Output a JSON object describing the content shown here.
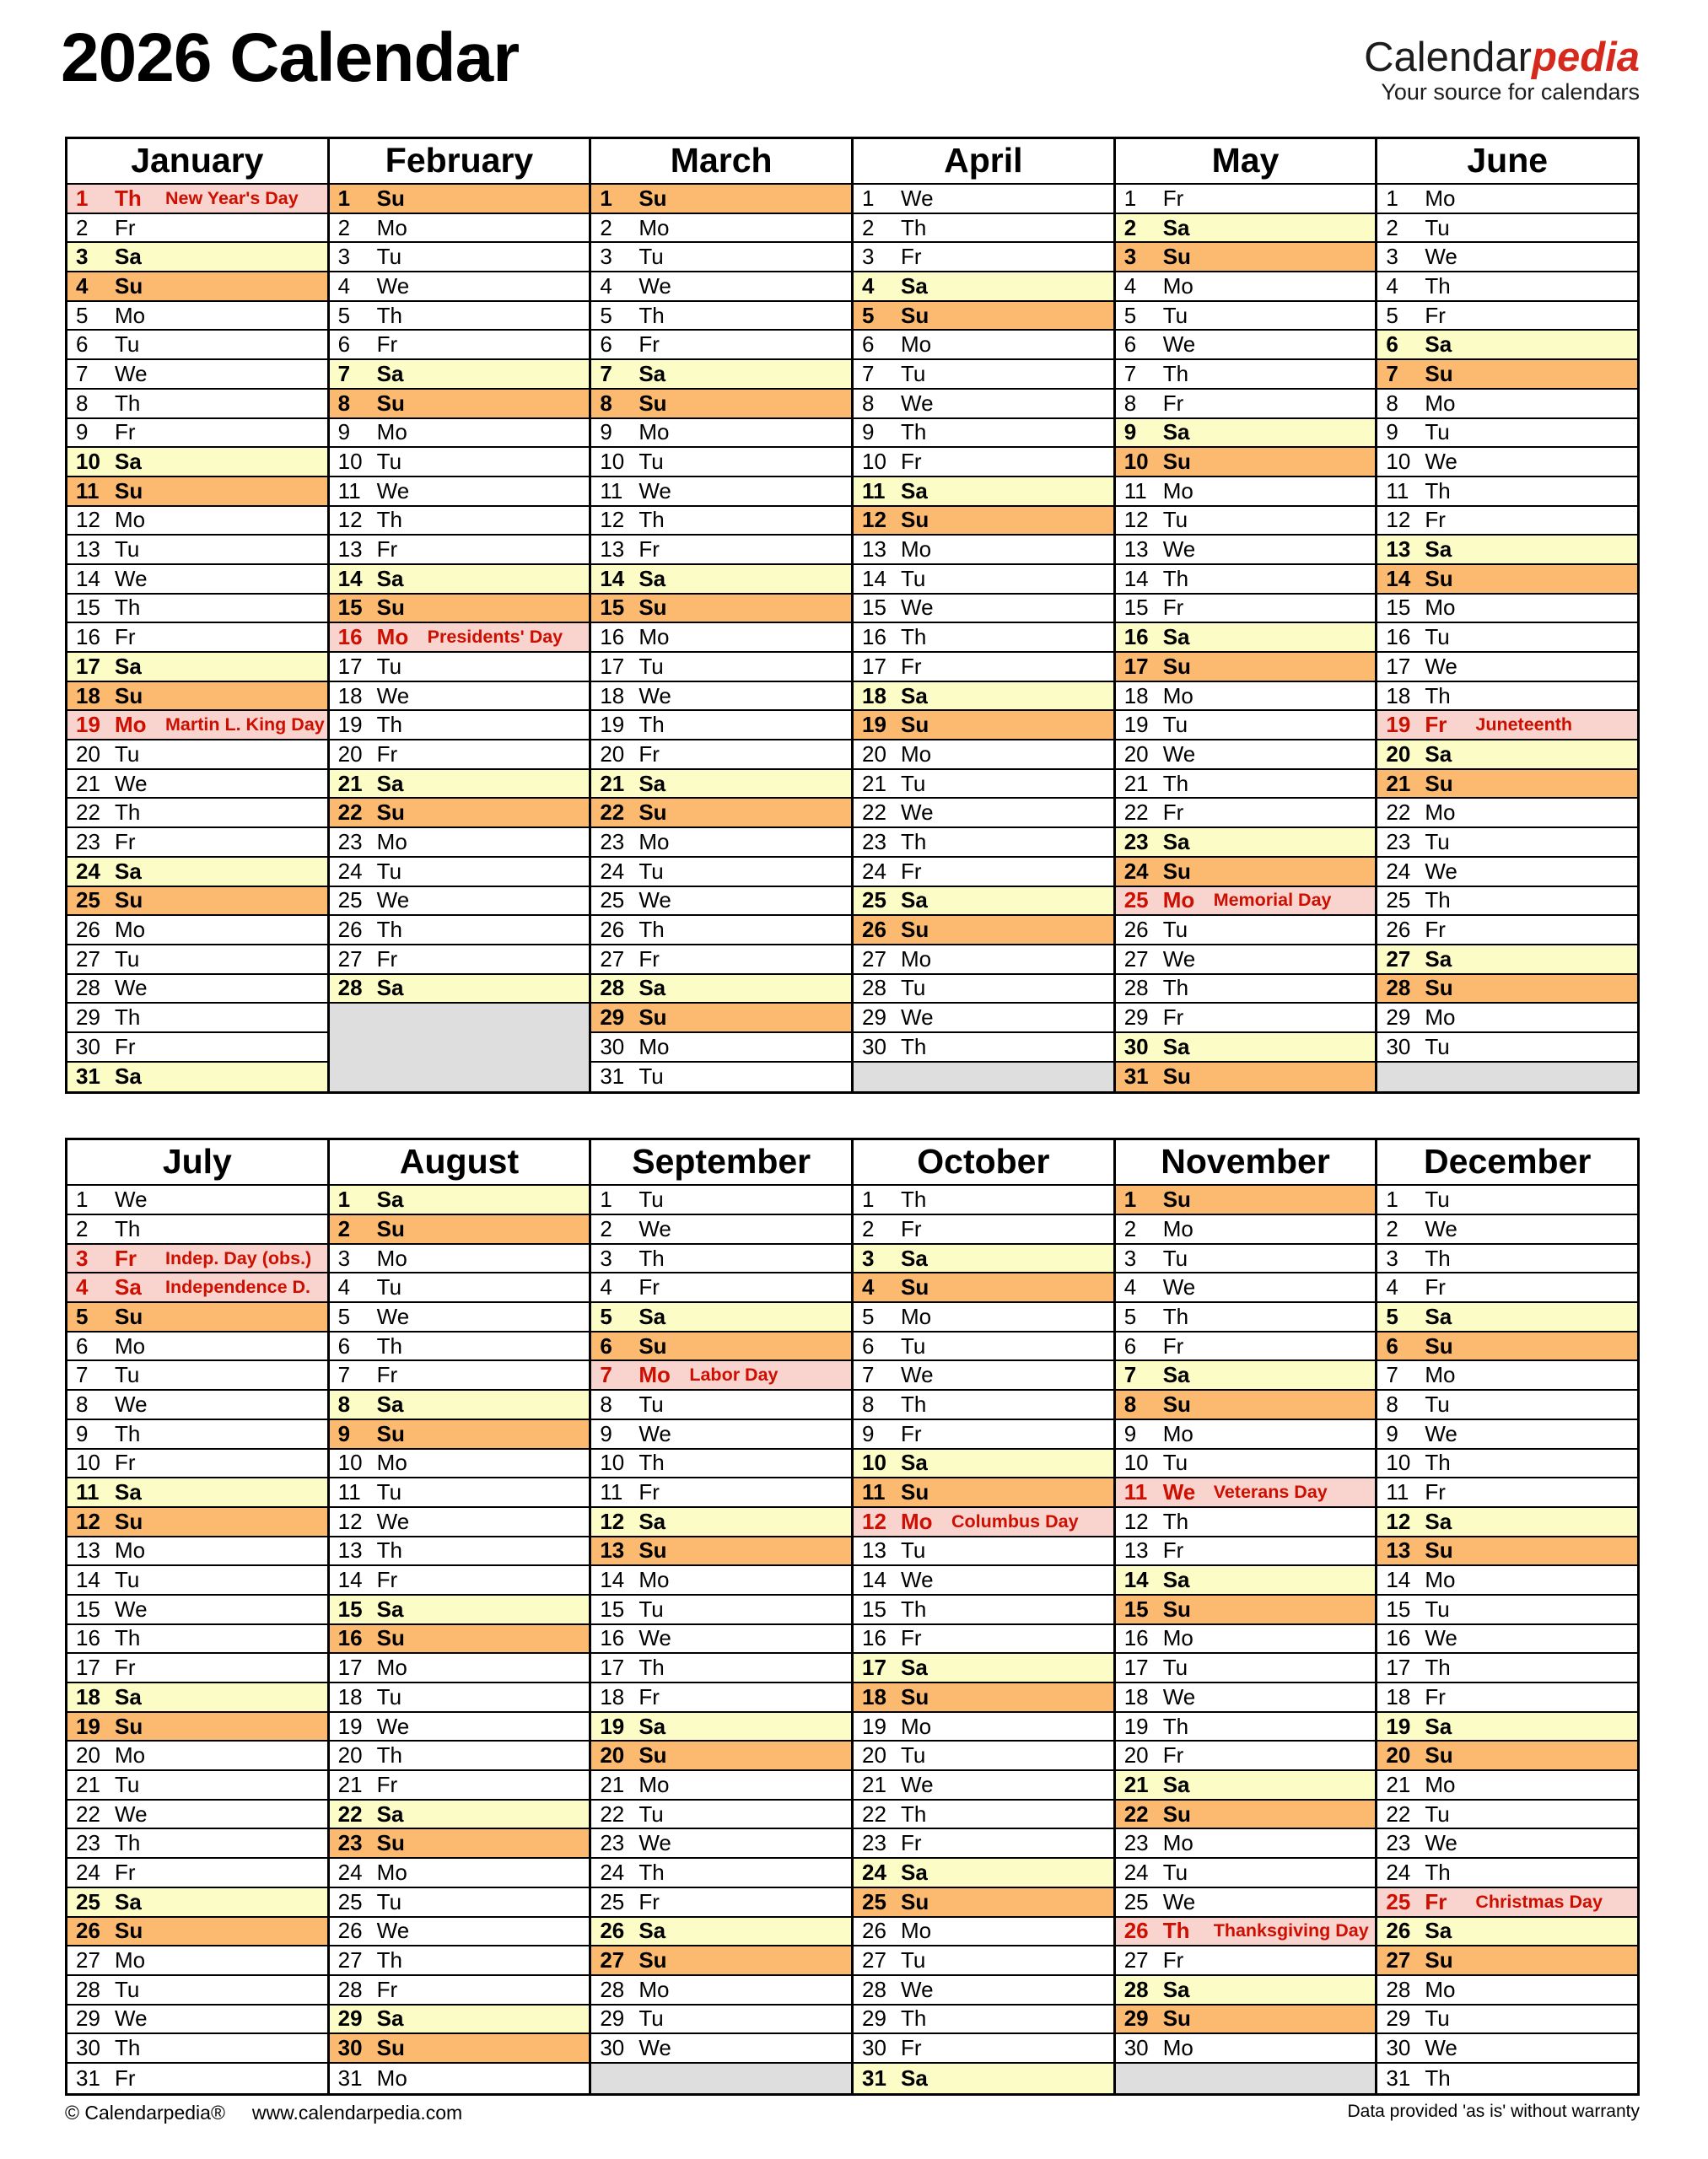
{
  "header": {
    "title": "2026 Calendar",
    "logo_black": "Calendar",
    "logo_red": "pedia",
    "tagline": "Your source for calendars"
  },
  "weekday_labels": [
    "Mo",
    "Tu",
    "We",
    "Th",
    "Fr",
    "Sa",
    "Su"
  ],
  "halves": [
    {
      "months": [
        {
          "name": "January",
          "days": 31,
          "start": 3,
          "holidays": {
            "1": "New Year's Day",
            "19": "Martin L. King Day"
          }
        },
        {
          "name": "February",
          "days": 28,
          "start": 6,
          "holidays": {
            "16": "Presidents' Day"
          }
        },
        {
          "name": "March",
          "days": 31,
          "start": 6,
          "holidays": {}
        },
        {
          "name": "April",
          "days": 30,
          "start": 2,
          "holidays": {}
        },
        {
          "name": "May",
          "days": 31,
          "start": 4,
          "holidays": {
            "25": "Memorial Day"
          }
        },
        {
          "name": "June",
          "days": 30,
          "start": 0,
          "holidays": {
            "19": "Juneteenth"
          }
        }
      ]
    },
    {
      "months": [
        {
          "name": "July",
          "days": 31,
          "start": 2,
          "holidays": {
            "3": "Indep. Day (obs.)",
            "4": "Independence D."
          }
        },
        {
          "name": "August",
          "days": 31,
          "start": 5,
          "holidays": {}
        },
        {
          "name": "September",
          "days": 30,
          "start": 1,
          "holidays": {
            "7": "Labor Day"
          }
        },
        {
          "name": "October",
          "days": 31,
          "start": 3,
          "holidays": {
            "12": "Columbus Day"
          }
        },
        {
          "name": "November",
          "days": 30,
          "start": 6,
          "holidays": {
            "11": "Veterans Day",
            "26": "Thanksgiving Day"
          }
        },
        {
          "name": "December",
          "days": 31,
          "start": 1,
          "holidays": {
            "25": "Christmas Day"
          }
        }
      ]
    }
  ],
  "footer": {
    "left_copyright": "© Calendarpedia®",
    "left_url": "www.calendarpedia.com",
    "right": "Data provided 'as is' without warranty"
  },
  "colors": {
    "saturday": "#FCFCC6",
    "sunday": "#FBBA70",
    "holiday_bg": "#F9D3CE",
    "holiday_text": "#CC0F00",
    "empty": "#DEDEDE",
    "logo_red": "#D5291D"
  }
}
